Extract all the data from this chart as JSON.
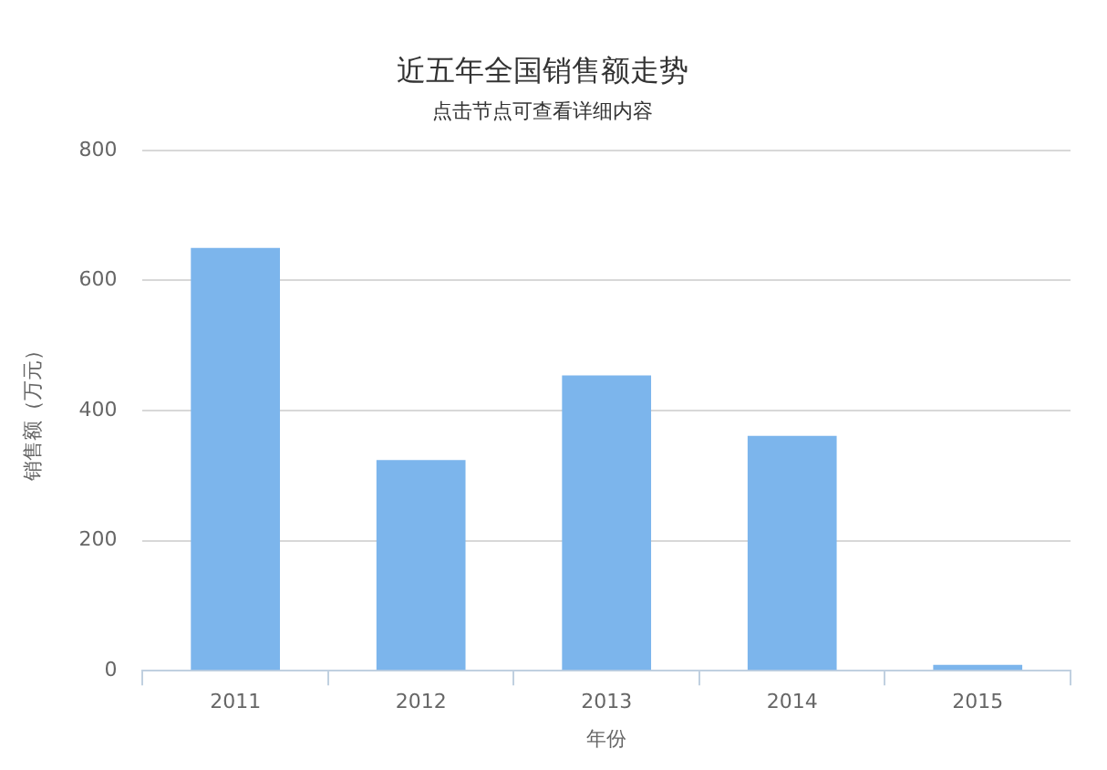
{
  "chart_data": {
    "type": "bar",
    "title": "近五年全国销售额走势",
    "subtitle": "点击节点可查看详细内容",
    "xlabel": "年份",
    "ylabel": "销售额（万元）",
    "categories": [
      "2011",
      "2012",
      "2013",
      "2014",
      "2015"
    ],
    "values": [
      650,
      324,
      454,
      361,
      9
    ],
    "color": "#7cb5ec",
    "ylim": [
      0,
      800
    ],
    "yticks": [
      0,
      200,
      400,
      600,
      800
    ],
    "grid": "y"
  }
}
